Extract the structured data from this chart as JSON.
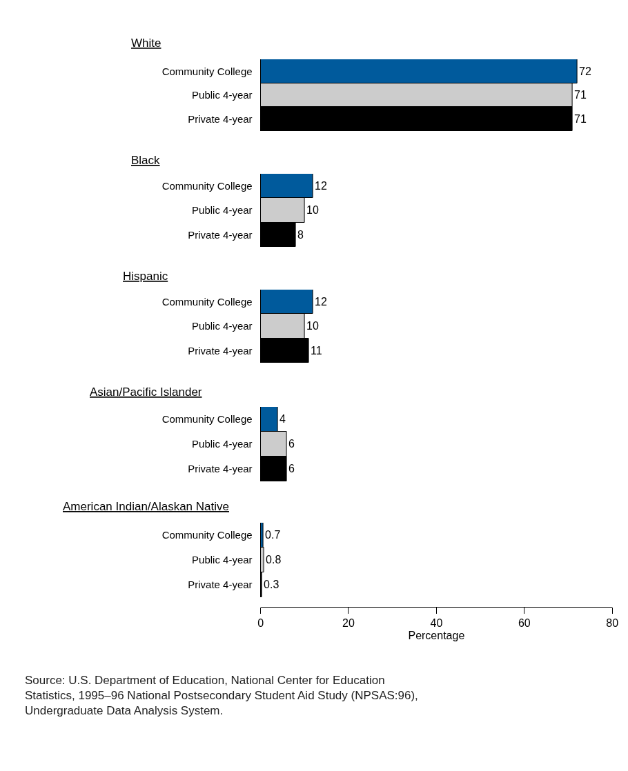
{
  "chart_data": [
    {
      "type": "bar",
      "orientation": "horizontal",
      "title": "White",
      "categories": [
        "Community College",
        "Public 4-year",
        "Private 4-year"
      ],
      "values": [
        72,
        71,
        71
      ],
      "colors": [
        "#005a9c",
        "#cccccc",
        "#000000"
      ],
      "xlim": [
        0,
        80
      ],
      "data_labels": true,
      "tick_labels": "y"
    },
    {
      "type": "bar",
      "orientation": "horizontal",
      "title": "Black",
      "categories": [
        "Community College",
        "Public 4-year",
        "Private 4-year"
      ],
      "values": [
        12,
        10,
        8
      ],
      "colors": [
        "#005a9c",
        "#cccccc",
        "#000000"
      ],
      "xlim": [
        0,
        80
      ],
      "data_labels": true,
      "tick_labels": "y"
    },
    {
      "type": "bar",
      "orientation": "horizontal",
      "title": "Hispanic",
      "categories": [
        "Community College",
        "Public 4-year",
        "Private 4-year"
      ],
      "values": [
        12,
        10,
        11
      ],
      "colors": [
        "#005a9c",
        "#cccccc",
        "#000000"
      ],
      "xlim": [
        0,
        80
      ],
      "data_labels": true,
      "tick_labels": "y"
    },
    {
      "type": "bar",
      "orientation": "horizontal",
      "title": "Asian/Pacific Islander",
      "categories": [
        "Community College",
        "Public 4-year",
        "Private 4-year"
      ],
      "values": [
        4,
        6,
        6
      ],
      "colors": [
        "#005a9c",
        "#cccccc",
        "#000000"
      ],
      "xlim": [
        0,
        80
      ],
      "data_labels": true,
      "tick_labels": "y"
    },
    {
      "type": "bar",
      "orientation": "horizontal",
      "title": "American Indian/Alaskan Native",
      "categories": [
        "Community College",
        "Public 4-year",
        "Private 4-year"
      ],
      "values": [
        0.7,
        0.8,
        0.3
      ],
      "colors": [
        "#005a9c",
        "#cccccc",
        "#000000"
      ],
      "xlim": [
        0,
        80
      ],
      "xticks": [
        0,
        20,
        40,
        60,
        80
      ],
      "xlabel": "Percentage",
      "data_labels": true,
      "annotations": [
        "Source: U.S. Department of Education, National Center for Education Statistics, 1995–96 National Postsecondary Student Aid Study (NPSAS:96), Undergraduate Data Analysis System."
      ]
    }
  ]
}
